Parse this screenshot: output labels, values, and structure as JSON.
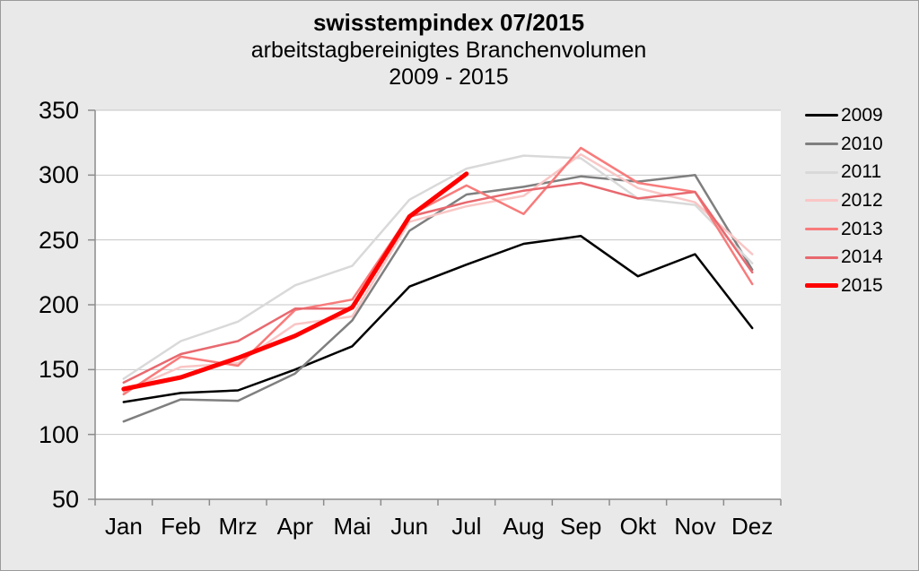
{
  "chart_data": {
    "type": "line",
    "title": "swisstempindex 07/2015",
    "subtitle": "arbeitstagbereinigtes Branchenvolumen",
    "subtitle2": "2009 - 2015",
    "categories": [
      "Jan",
      "Feb",
      "Mrz",
      "Apr",
      "Mai",
      "Jun",
      "Jul",
      "Aug",
      "Sep",
      "Okt",
      "Nov",
      "Dez"
    ],
    "ylim": [
      50,
      350
    ],
    "y_ticks": [
      350,
      300,
      250,
      200,
      150,
      100,
      50
    ],
    "grid": true,
    "legend_position": "right",
    "series": [
      {
        "name": "2009",
        "color": "#000000",
        "width": 2.5,
        "values": [
          125,
          132,
          134,
          150,
          168,
          214,
          231,
          247,
          253,
          222,
          239,
          182
        ]
      },
      {
        "name": "2010",
        "color": "#7f7f7f",
        "width": 2.5,
        "values": [
          110,
          127,
          126,
          147,
          188,
          257,
          285,
          291,
          299,
          295,
          300,
          227
        ]
      },
      {
        "name": "2011",
        "color": "#d9d9d9",
        "width": 2.5,
        "values": [
          143,
          172,
          187,
          215,
          230,
          281,
          305,
          315,
          313,
          282,
          277,
          232
        ]
      },
      {
        "name": "2012",
        "color": "#f9c6c5",
        "width": 2.5,
        "values": [
          133,
          152,
          155,
          185,
          191,
          264,
          276,
          284,
          316,
          290,
          279,
          239
        ]
      },
      {
        "name": "2013",
        "color": "#f87b7b",
        "width": 2.5,
        "values": [
          131,
          160,
          153,
          196,
          204,
          269,
          292,
          270,
          321,
          294,
          287,
          216
        ]
      },
      {
        "name": "2014",
        "color": "#e8696f",
        "width": 2.5,
        "values": [
          140,
          162,
          172,
          197,
          197,
          268,
          279,
          288,
          294,
          282,
          287,
          225
        ]
      },
      {
        "name": "2015",
        "color": "#ff0000",
        "width": 5,
        "values": [
          135,
          144,
          159,
          176,
          198,
          268,
          301,
          null,
          null,
          null,
          null,
          null
        ]
      }
    ]
  },
  "colors": {
    "background": "#e9e9e9",
    "plot_background": "#ffffff",
    "gridline": "#c6c6c6",
    "axis": "#8c8c8c",
    "text": "#000000"
  }
}
